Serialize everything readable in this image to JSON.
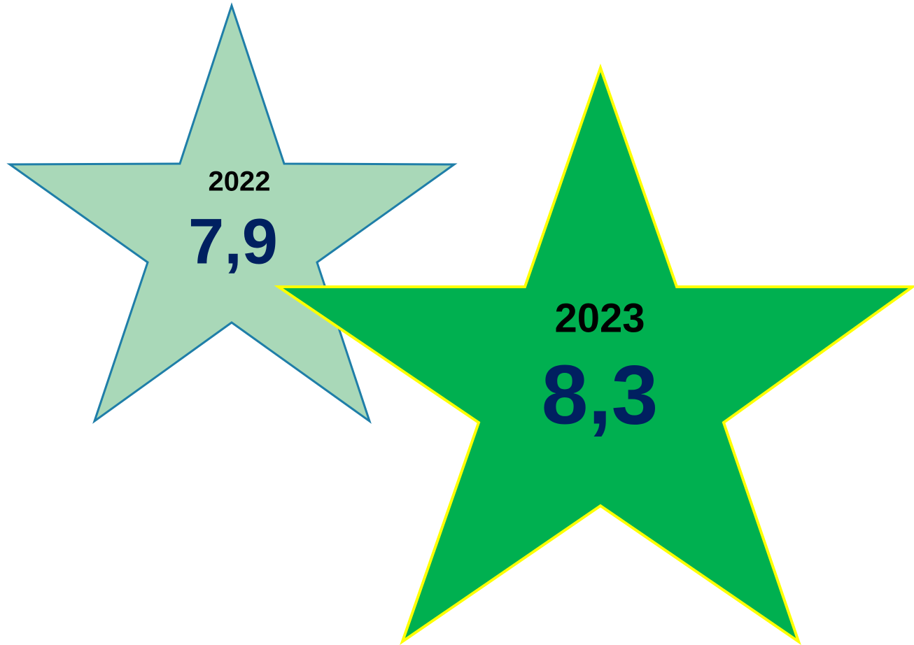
{
  "stars": [
    {
      "year": "2022",
      "value": "7,9"
    },
    {
      "year": "2023",
      "value": "8,3"
    }
  ]
}
